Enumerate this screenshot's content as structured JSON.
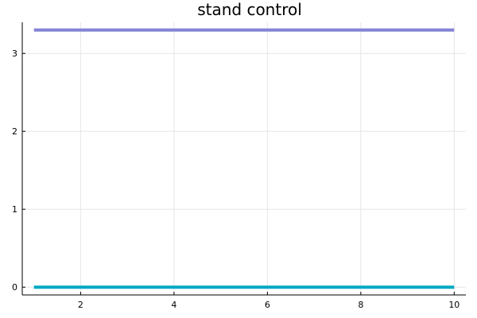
{
  "chart_data": {
    "type": "line",
    "title": "stand control",
    "xlabel": "",
    "ylabel": "",
    "xlim": [
      0.75,
      10.25
    ],
    "ylim": [
      -0.1,
      3.4
    ],
    "xticks": [
      2,
      4,
      6,
      8,
      10
    ],
    "yticks": [
      0,
      1,
      2,
      3
    ],
    "grid": true,
    "legend": "none",
    "series": [
      {
        "color": "#8484d6",
        "x": [
          1,
          10
        ],
        "y": [
          3.3,
          3.3
        ]
      },
      {
        "color": "#00a9c5",
        "x": [
          1,
          10
        ],
        "y": [
          0.0,
          0.0
        ]
      }
    ]
  }
}
